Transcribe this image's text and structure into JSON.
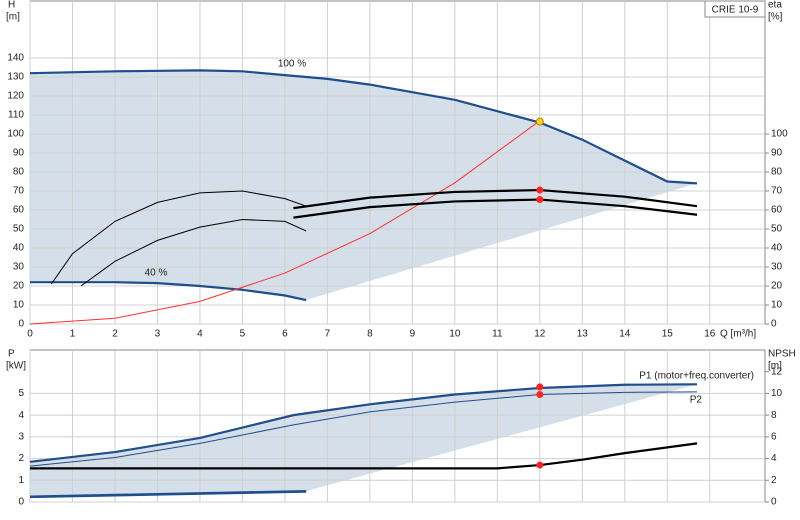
{
  "chart_data": [
    {
      "type": "line",
      "tag": "CRIE 10-9",
      "ylabel": "H",
      "yunit": "[m]",
      "y2label": "eta",
      "y2unit": "[%]",
      "xlabel": "Q [m³/h]",
      "annotations": [
        "100 %",
        "40 %"
      ],
      "xlim": [
        0,
        17.3
      ],
      "ylim": [
        0,
        170
      ],
      "y2lim": [
        0,
        170
      ],
      "xticks": [
        0,
        1,
        2,
        3,
        4,
        5,
        6,
        7,
        8,
        9,
        10,
        11,
        12,
        13,
        14,
        15,
        16
      ],
      "xtick_labels": true,
      "yticks": [
        0,
        10,
        20,
        30,
        40,
        50,
        60,
        70,
        80,
        90,
        100,
        110,
        120,
        130,
        140
      ],
      "y2ticks": [
        0,
        10,
        20,
        30,
        40,
        50,
        60,
        70,
        80,
        90,
        100
      ],
      "grid": true,
      "region_color": "#cdd9e5",
      "series": [
        {
          "kind": "line",
          "style": "bold",
          "color": "#1f4e8c",
          "x": [
            0,
            2,
            4,
            5,
            6,
            7,
            8,
            9,
            10,
            11,
            12,
            13,
            14,
            15,
            15.7
          ],
          "values": [
            132,
            133,
            133.5,
            133,
            131,
            129,
            126,
            122,
            118,
            112,
            106,
            97,
            86,
            75,
            74
          ]
        },
        {
          "kind": "line",
          "style": "bold",
          "color": "#1f4e8c",
          "x": [
            0,
            2,
            3,
            4,
            5,
            6,
            6.5
          ],
          "values": [
            22,
            22,
            21.5,
            20,
            18,
            15,
            12.6
          ]
        },
        {
          "kind": "line",
          "style": "thin",
          "color": "#ff3030",
          "x": [
            0,
            2,
            4,
            6,
            8,
            10,
            12
          ],
          "values": [
            0,
            3,
            11.9,
            26.8,
            47.6,
            74.3,
            107
          ]
        },
        {
          "kind": "line",
          "style": "bold",
          "color": "#000000",
          "x": [
            6.2,
            8,
            10,
            12,
            14,
            15.7
          ],
          "values": [
            61,
            66.5,
            69.5,
            70.5,
            67,
            62
          ]
        },
        {
          "kind": "line",
          "style": "bold",
          "color": "#000000",
          "x": [
            6.2,
            8,
            10,
            12,
            14,
            15.7
          ],
          "values": [
            56,
            61.5,
            64.5,
            65.5,
            62,
            57.5
          ]
        },
        {
          "kind": "line",
          "style": "thin",
          "color": "#000000",
          "x": [
            0.5,
            1,
            2,
            3,
            4,
            5,
            6,
            6.5
          ],
          "values": [
            21,
            37,
            54,
            64,
            69,
            70,
            66,
            62
          ]
        },
        {
          "kind": "line",
          "style": "thin",
          "color": "#000000",
          "x": [
            1.2,
            2,
            3,
            4,
            5,
            6,
            6.5
          ],
          "values": [
            20,
            33,
            44,
            51,
            55,
            54,
            49
          ]
        },
        {
          "kind": "point",
          "color": "#ffd21f",
          "x": [
            12
          ],
          "values": [
            106.5
          ]
        },
        {
          "kind": "point",
          "color": "#ff2020",
          "x": [
            12,
            12
          ],
          "values": [
            70.5,
            65.5
          ]
        }
      ]
    },
    {
      "type": "line",
      "ylabel": "P",
      "yunit": "[kW]",
      "y2label": "NPSH",
      "y2unit": "[m]",
      "annotations": [
        "P1 (motor+freq.converter)",
        "P2"
      ],
      "xlim": [
        0,
        17.3
      ],
      "ylim": [
        0,
        7
      ],
      "y2lim": [
        0,
        14
      ],
      "xticks": [
        0,
        1,
        2,
        3,
        4,
        5,
        6,
        7,
        8,
        9,
        10,
        11,
        12,
        13,
        14,
        15,
        16
      ],
      "xtick_labels": false,
      "yticks": [
        0,
        1,
        2,
        3,
        4,
        5
      ],
      "y2ticks": [
        0,
        2,
        4,
        6,
        8,
        10,
        12
      ],
      "grid": true,
      "region_color": "#cdd9e5",
      "series": [
        {
          "kind": "line",
          "style": "bold",
          "color": "#1f4e8c",
          "x": [
            0,
            2,
            4,
            6.2,
            8,
            10,
            12,
            14,
            15.7
          ],
          "values": [
            1.85,
            2.3,
            2.95,
            4.0,
            4.5,
            4.95,
            5.25,
            5.4,
            5.42
          ]
        },
        {
          "kind": "line",
          "style": "thin",
          "color": "#1f4e8c",
          "x": [
            0,
            2,
            4,
            6.2,
            8,
            10,
            12,
            14,
            15.7
          ],
          "values": [
            1.65,
            2.05,
            2.7,
            3.55,
            4.15,
            4.6,
            4.95,
            5.05,
            5.07
          ]
        },
        {
          "kind": "line",
          "style": "bold",
          "color": "#1f4e8c",
          "x": [
            0,
            6.5
          ],
          "values": [
            0.25,
            0.5
          ]
        },
        {
          "kind": "line",
          "style": "thin",
          "color": "#1f4e8c",
          "x": [
            0,
            6.5
          ],
          "values": [
            0.2,
            0.45
          ]
        },
        {
          "kind": "line",
          "style": "bold",
          "color": "#000000",
          "axis": "y2",
          "x": [
            0,
            6.2,
            11,
            12,
            13,
            14,
            15.7
          ],
          "values": [
            3.1,
            3.1,
            3.1,
            3.4,
            3.9,
            4.5,
            5.4
          ]
        },
        {
          "kind": "point",
          "color": "#ff2020",
          "x": [
            12,
            12
          ],
          "values": [
            5.3,
            4.95
          ]
        },
        {
          "kind": "point",
          "color": "#ff2020",
          "axis": "y2",
          "x": [
            12
          ],
          "values": [
            3.4
          ]
        }
      ]
    }
  ]
}
